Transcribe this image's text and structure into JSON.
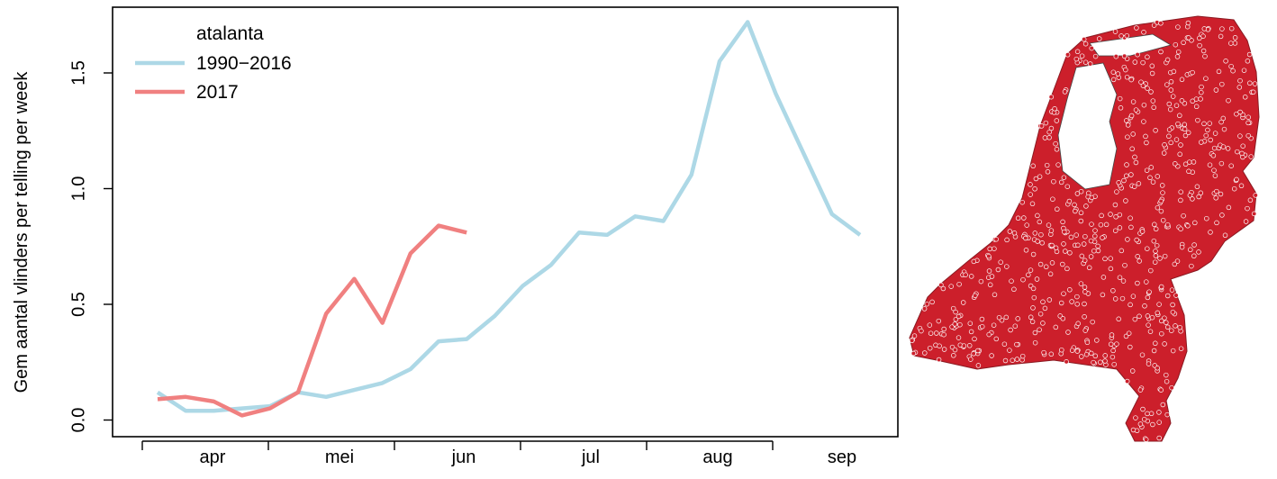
{
  "chart_data": {
    "type": "line",
    "title": "",
    "xlabel": "",
    "ylabel": "Gem aantal vlinders per telling per week",
    "ylim": [
      0.0,
      1.8
    ],
    "yticks": [
      "0.0",
      "0.5",
      "1.0",
      "1.5"
    ],
    "ytick_values": [
      0.0,
      0.5,
      1.0,
      1.5
    ],
    "x_range": [
      1,
      31
    ],
    "month_labels": [
      "apr",
      "mei",
      "jun",
      "jul",
      "aug",
      "sep"
    ],
    "legend": {
      "title": "atalanta",
      "position": "top-left"
    },
    "grid": false,
    "series": [
      {
        "name": "1990−2016",
        "color": "#add8e6",
        "x": [
          1,
          2,
          3,
          4,
          5,
          6,
          7,
          8,
          9,
          10,
          11,
          12,
          13,
          14,
          15,
          16,
          17,
          18,
          19,
          20,
          21,
          22,
          23,
          24,
          25,
          26,
          27,
          28
        ],
        "values": [
          0.12,
          0.04,
          0.04,
          0.05,
          0.06,
          0.12,
          0.1,
          0.13,
          0.16,
          0.22,
          0.34,
          0.35,
          0.45,
          0.58,
          0.67,
          0.81,
          0.8,
          0.88,
          0.86,
          1.06,
          1.55,
          1.72,
          1.41,
          1.15,
          0.89,
          0.8,
          null,
          null
        ]
      },
      {
        "name": "2017",
        "color": "#f08080",
        "x": [
          1,
          2,
          3,
          4,
          5,
          6,
          7,
          8,
          9,
          10,
          11,
          12
        ],
        "values": [
          0.09,
          0.1,
          0.08,
          0.02,
          0.05,
          0.12,
          0.46,
          0.61,
          0.42,
          0.72,
          0.84,
          0.81
        ]
      }
    ]
  },
  "map": {
    "name": "Netherlands observation sites",
    "point_color": "#cc1f2b"
  }
}
